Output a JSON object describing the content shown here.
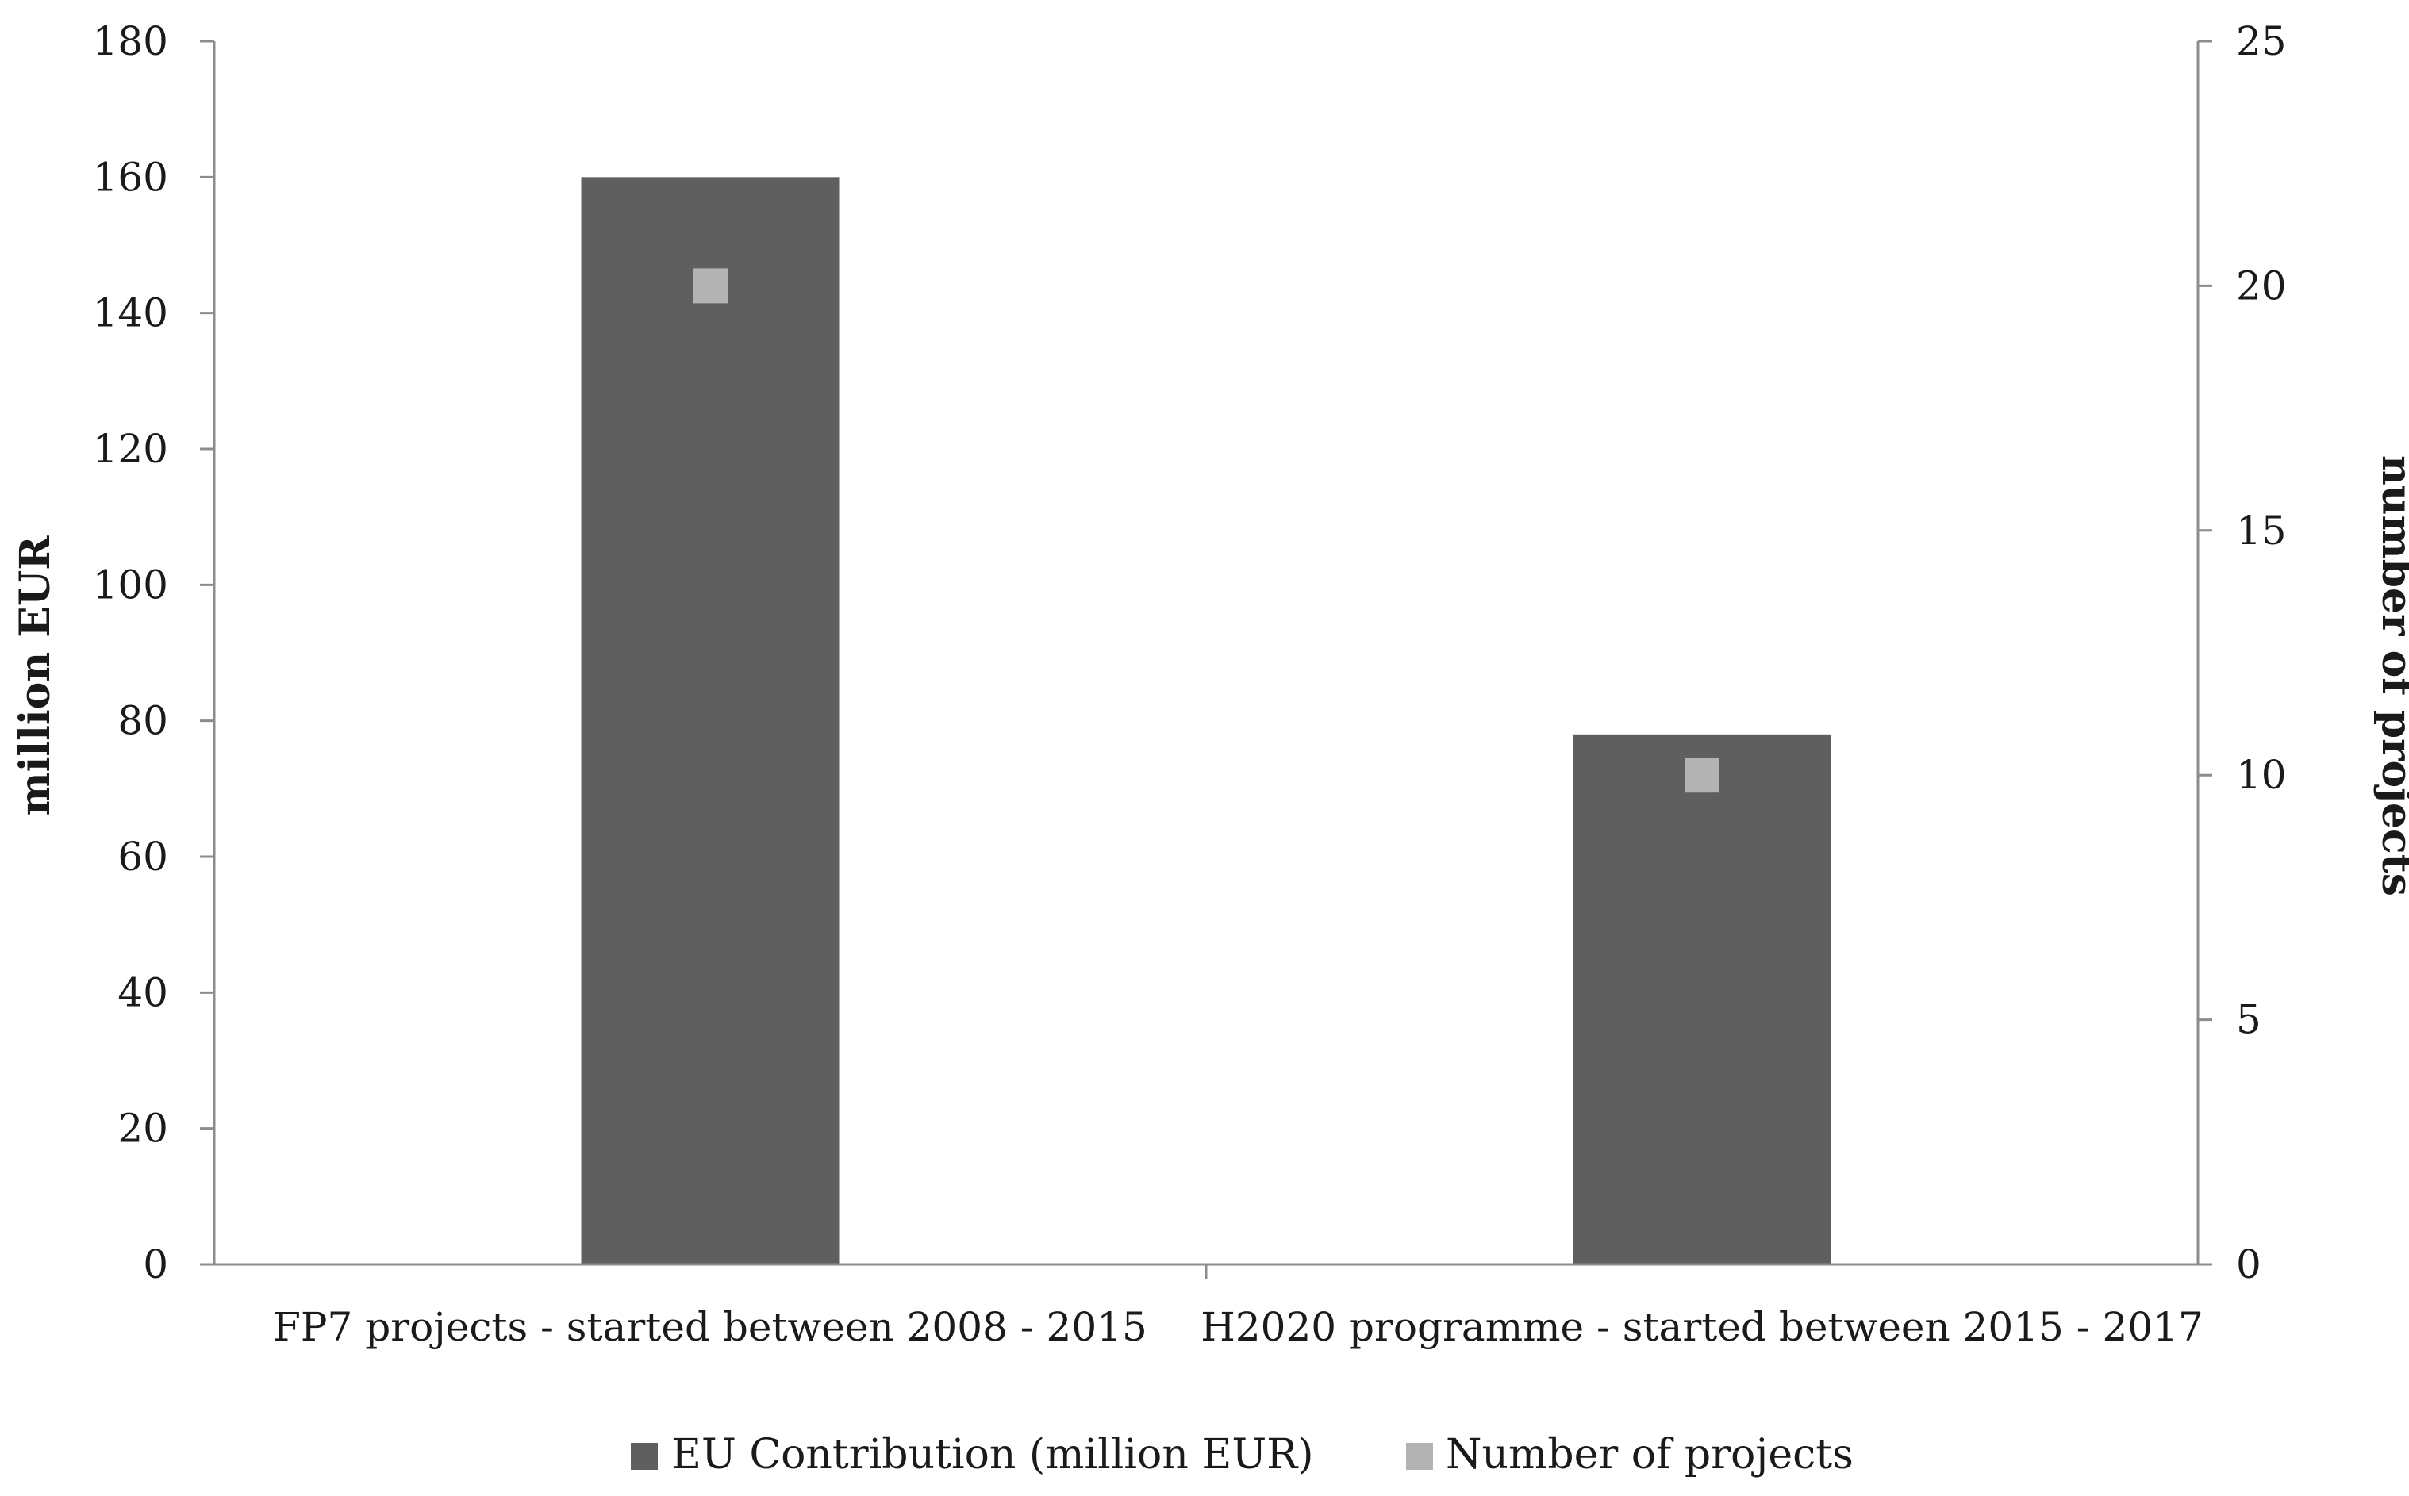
{
  "chart_data": {
    "type": "bar",
    "categories": [
      "FP7 projects - started between 2008 - 2015",
      "H2020 programme - started between 2015 - 2017"
    ],
    "series": [
      {
        "name": "EU Contribution (million EUR)",
        "kind": "bar",
        "axis": "left",
        "values": [
          160,
          78
        ],
        "color": "#5f5f5f"
      },
      {
        "name": "Number of projects",
        "kind": "marker",
        "axis": "right",
        "values": [
          20,
          10
        ],
        "color": "#b3b3b3"
      }
    ],
    "ylabel": "million EUR",
    "ylabel_right": "number of projects",
    "ylim": [
      0,
      180
    ],
    "ylim_right": [
      0,
      25
    ],
    "yticks": [
      "0",
      "20",
      "40",
      "60",
      "80",
      "100",
      "120",
      "140",
      "160",
      "180"
    ],
    "yticks_right": [
      "0",
      "5",
      "10",
      "15",
      "20",
      "25"
    ],
    "grid": false,
    "legend_position": "bottom"
  }
}
